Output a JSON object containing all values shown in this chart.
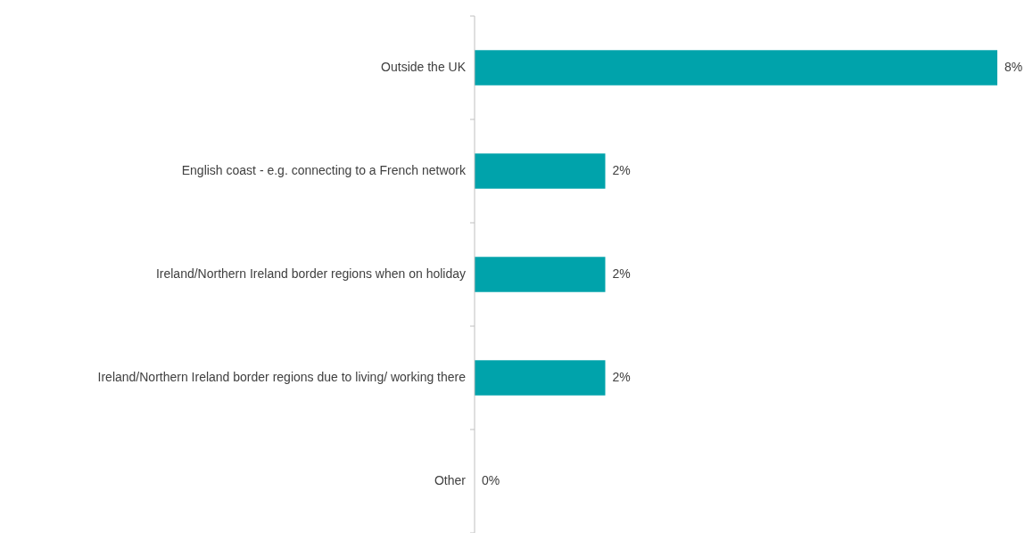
{
  "chart_data": {
    "type": "bar",
    "orientation": "horizontal",
    "categories": [
      "Outside the UK",
      "English coast - e.g. connecting to a French network",
      "Ireland/Northern Ireland border regions when on holiday",
      "Ireland/Northern Ireland border regions due to living/ working there",
      "Other"
    ],
    "values": [
      8,
      2,
      2,
      2,
      0
    ],
    "value_labels": [
      "8%",
      "2%",
      "2%",
      "2%",
      "0%"
    ],
    "color": "#00a3ab"
  }
}
